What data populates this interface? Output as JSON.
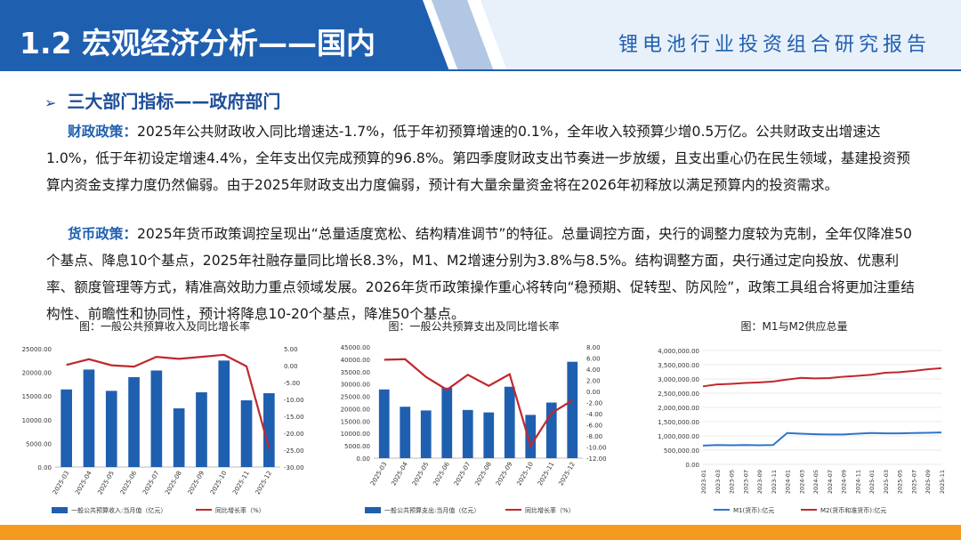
{
  "header": {
    "title": "1.2 宏观经济分析——国内",
    "subtitle": "锂电池行业投资组合研究报告"
  },
  "section_title": "三大部门指标——政府部门",
  "paragraphs": {
    "fiscal": {
      "label": "财政政策：",
      "text": "2025年公共财政收入同比增速达-1.7%，低于年初预算增速的0.1%，全年收入较预算少增0.5万亿。公共财政支出增速达1.0%，低于年初设定增速4.4%，全年支出仅完成预算的96.8%。第四季度财政支出节奏进一步放缓，且支出重心仍在民生领域，基建投资预算内资金支撑力度仍然偏弱。由于2025年财政支出力度偏弱，预计有大量余量资金将在2026年初释放以满足预算内的投资需求。"
    },
    "monetary": {
      "label": "货币政策：",
      "text": "2025年货币政策调控呈现出“总量适度宽松、结构精准调节”的特征。总量调控方面，央行的调整力度较为克制，全年仅降准50个基点、降息10个基点，2025年社融存量同比增长8.3%，M1、M2增速分别为3.8%与8.5%。结构调整方面，央行通过定向投放、优惠利率、额度管理等方式，精准高效助力重点领域发展。2026年货币政策操作重心将转向“稳预期、促转型、防风险”，政策工具组合将更加注重结构性、前瞻性和协同性，预计将降息10-20个基点，降准50个基点。"
    }
  },
  "colors": {
    "bar": "#1f5fb0",
    "line": "#c0282d",
    "m2": "#c0282d",
    "m1": "#2e75c8",
    "header_blue": "#1f5fb0",
    "bottom": "#f39a1f"
  },
  "chart_data": [
    {
      "type": "bar",
      "title": "图：一般公共预算收入及同比增长率",
      "categories": [
        "2025-03",
        "2025-04",
        "2025-05",
        "2025-06",
        "2025-07",
        "2025-08",
        "2025-09",
        "2025-10",
        "2025-11",
        "2025-12"
      ],
      "series": [
        {
          "name": "一般公共预算收入:当月值（亿元）",
          "axis": "left",
          "kind": "bar",
          "values": [
            16400,
            20600,
            16100,
            19000,
            20400,
            12400,
            15800,
            22500,
            14100,
            15600
          ]
        },
        {
          "name": "同比增长率（%）",
          "axis": "right",
          "kind": "line",
          "values": [
            0.2,
            1.9,
            0.1,
            -0.3,
            2.6,
            2.0,
            2.6,
            3.2,
            -0.2,
            -24.5
          ]
        }
      ],
      "yticks_left": [
        "0.00",
        "5000.00",
        "10000.00",
        "15000.00",
        "20000.00",
        "25000.00"
      ],
      "yticks_right": [
        "-30.00",
        "-25.00",
        "-20.00",
        "-15.00",
        "-10.00",
        "-5.00",
        "0.00",
        "5.00"
      ],
      "ylim_left": [
        0,
        25000
      ],
      "ylim_right": [
        -30,
        5
      ]
    },
    {
      "type": "bar",
      "title": "图：一般公共预算支出及同比增长率",
      "categories": [
        "2025-03",
        "2025-04",
        "2025-05",
        "2025-06",
        "2025-07",
        "2025-08",
        "2025-09",
        "2025-10",
        "2025-11",
        "2025-12"
      ],
      "series": [
        {
          "name": "一般公共预算支出:当月值（亿元）",
          "axis": "left",
          "kind": "bar",
          "values": [
            27800,
            20800,
            19300,
            28500,
            19500,
            18500,
            28900,
            17500,
            22500,
            39000
          ]
        },
        {
          "name": "同比增长率（%）",
          "axis": "right",
          "kind": "line",
          "values": [
            5.7,
            5.8,
            2.6,
            0.3,
            3.0,
            1.0,
            3.1,
            -9.8,
            -3.9,
            -1.6
          ]
        }
      ],
      "yticks_left": [
        "0.00",
        "5000.00",
        "10000.00",
        "15000.00",
        "20000.00",
        "25000.00",
        "30000.00",
        "35000.00",
        "40000.00",
        "45000.00"
      ],
      "yticks_right": [
        "-12.00",
        "-10.00",
        "-8.00",
        "-6.00",
        "-4.00",
        "-2.00",
        "0.00",
        "2.00",
        "4.00",
        "6.00",
        "8.00"
      ],
      "ylim_left": [
        0,
        45000
      ],
      "ylim_right": [
        -12,
        8
      ]
    },
    {
      "type": "line",
      "title": "图：M1与M2供应总量",
      "x": [
        "2023-01",
        "2023-03",
        "2023-05",
        "2023-07",
        "2023-09",
        "2023-11",
        "2024-01",
        "2024-03",
        "2024-05",
        "2024-07",
        "2024-09",
        "2024-11",
        "2025-01",
        "2025-03",
        "2025-05",
        "2025-07",
        "2025-09",
        "2025-11"
      ],
      "series": [
        {
          "name": "M1(货币):亿元",
          "values": [
            660000,
            680000,
            670000,
            680000,
            670000,
            680000,
            1100000,
            1080000,
            1060000,
            1050000,
            1050000,
            1080000,
            1100000,
            1090000,
            1090000,
            1100000,
            1110000,
            1120000
          ]
        },
        {
          "name": "M2(货币和准货币):亿元",
          "values": [
            2740000,
            2810000,
            2830000,
            2860000,
            2880000,
            2910000,
            2980000,
            3040000,
            3020000,
            3030000,
            3080000,
            3110000,
            3150000,
            3220000,
            3240000,
            3280000,
            3340000,
            3380000
          ]
        }
      ],
      "yticks": [
        "0.00",
        "500,000.00",
        "1,000,000.00",
        "1,500,000.00",
        "2,000,000.00",
        "2,500,000.00",
        "3,000,000.00",
        "3,500,000.00",
        "4,000,000.00"
      ],
      "ylim": [
        0,
        4000000
      ]
    }
  ]
}
